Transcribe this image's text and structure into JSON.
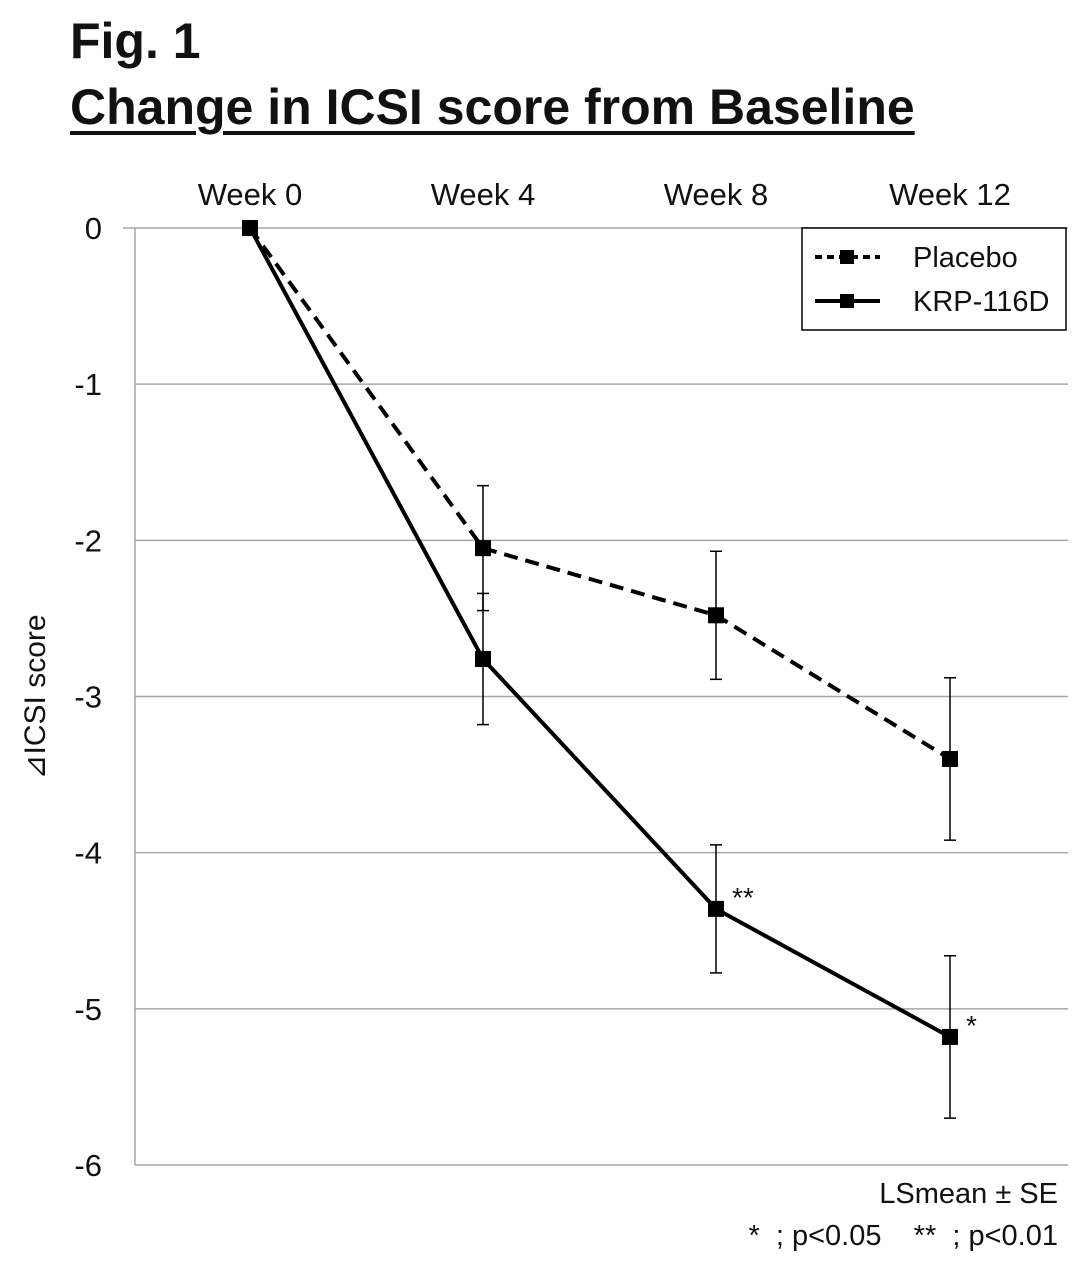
{
  "figure_label": "Fig. 1",
  "footnotes": {
    "stat_note": "LSmean ± SE",
    "significance": "*  ; p<0.05    **  ; p<0.01"
  },
  "chart_data": {
    "type": "line",
    "title": "Change in ICSI score from Baseline",
    "ylabel": "⊿ICSI score",
    "xlabel": "",
    "categories": [
      "Week 0",
      "Week 4",
      "Week 8",
      "Week 12"
    ],
    "ylim": [
      -6,
      0
    ],
    "yticks": [
      0,
      -1,
      -2,
      -3,
      -4,
      -5,
      -6
    ],
    "x_axis_position": "top",
    "grid": true,
    "legend": "top-right",
    "series": [
      {
        "name": "Placebo",
        "line_style": "dashed",
        "marker": "square",
        "values": [
          0,
          -2.05,
          -2.48,
          -3.4
        ],
        "se": [
          0,
          0.4,
          0.41,
          0.52
        ],
        "annotations": [
          "",
          "",
          "",
          ""
        ]
      },
      {
        "name": "KRP-116D",
        "line_style": "solid",
        "marker": "square",
        "values": [
          0,
          -2.76,
          -4.36,
          -5.18
        ],
        "se": [
          0,
          0.42,
          0.41,
          0.52
        ],
        "annotations": [
          "",
          "",
          "**",
          "*"
        ]
      }
    ]
  }
}
